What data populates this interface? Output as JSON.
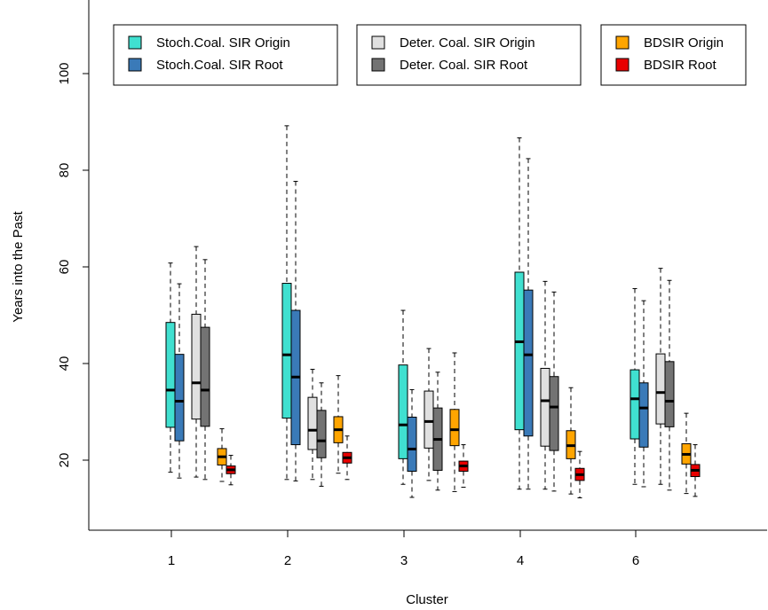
{
  "chart_data": {
    "type": "boxplot",
    "xlabel": "Cluster",
    "ylabel": "Years into the Past",
    "categories": [
      "1",
      "2",
      "3",
      "4",
      "6"
    ],
    "yticks": [
      20,
      40,
      60,
      80,
      100
    ],
    "ylim": [
      6,
      115
    ],
    "legend_groups": [
      [
        "Stoch.Coal. SIR Origin",
        "Stoch.Coal. SIR Root"
      ],
      [
        "Deter. Coal. SIR Origin",
        "Deter. Coal. SIR Root"
      ],
      [
        "BDSIR Origin",
        "BDSIR Root"
      ]
    ],
    "series": [
      {
        "name": "Stoch.Coal. SIR Origin",
        "color": "#40E0D0",
        "stats": [
          [
            17.5,
            26.8,
            34.5,
            48.5,
            60.8
          ],
          [
            16,
            28.7,
            41.8,
            56.6,
            89.2
          ],
          [
            15,
            20.3,
            27.3,
            39.7,
            51
          ],
          [
            14,
            26.3,
            44.5,
            58.9,
            86.7
          ],
          [
            15,
            24.4,
            32.7,
            38.7,
            55.5
          ]
        ]
      },
      {
        "name": "Stoch.Coal. SIR Root",
        "color": "#3A7AB8",
        "stats": [
          [
            16.3,
            24,
            32.2,
            41.9,
            56.5
          ],
          [
            15.7,
            23.2,
            37.2,
            51,
            77.7
          ],
          [
            12.3,
            17.7,
            22.3,
            28.9,
            34.6
          ],
          [
            14,
            25,
            41.8,
            55.2,
            82.4
          ],
          [
            14.5,
            22.7,
            30.8,
            36,
            53
          ]
        ]
      },
      {
        "name": "Deter. Coal. SIR Origin",
        "color": "#E0E0E0",
        "stats": [
          [
            16.5,
            28.5,
            36,
            50.2,
            64.2
          ],
          [
            16,
            22.2,
            26.2,
            33,
            38.8
          ],
          [
            15.8,
            22.5,
            28,
            34.3,
            43.1
          ],
          [
            14,
            22.9,
            32.3,
            39,
            57
          ],
          [
            15,
            27.5,
            34,
            42,
            59.7
          ]
        ]
      },
      {
        "name": "Deter. Coal. SIR Root",
        "color": "#737373",
        "stats": [
          [
            16,
            27,
            34.5,
            47.5,
            61.5
          ],
          [
            14.6,
            20.5,
            24,
            30.3,
            36
          ],
          [
            13.8,
            17.9,
            24.3,
            30.8,
            38.2
          ],
          [
            13.6,
            22,
            31,
            37.3,
            54.8
          ],
          [
            13.8,
            26.9,
            32.2,
            40.4,
            57.2
          ]
        ]
      },
      {
        "name": "BDSIR Origin",
        "color": "#FFA500",
        "stats": [
          [
            15.6,
            19,
            20.7,
            22.4,
            26.5
          ],
          [
            17.3,
            23.6,
            26.3,
            29,
            37.5
          ],
          [
            13.5,
            23,
            26.3,
            30.5,
            42.2
          ],
          [
            13,
            20.3,
            23,
            26.1,
            35
          ],
          [
            13.1,
            19.2,
            21.2,
            23.4,
            29.7
          ]
        ]
      },
      {
        "name": "BDSIR Root",
        "color": "#E80000",
        "stats": [
          [
            14.9,
            17.2,
            18,
            18.8,
            21
          ],
          [
            16,
            19.4,
            20.5,
            21.6,
            25
          ],
          [
            14.4,
            17.7,
            18.8,
            19.8,
            23.2
          ],
          [
            12.2,
            15.8,
            17,
            18.3,
            21.8
          ],
          [
            12.5,
            16.6,
            17.9,
            19.1,
            23.2
          ]
        ]
      }
    ]
  }
}
